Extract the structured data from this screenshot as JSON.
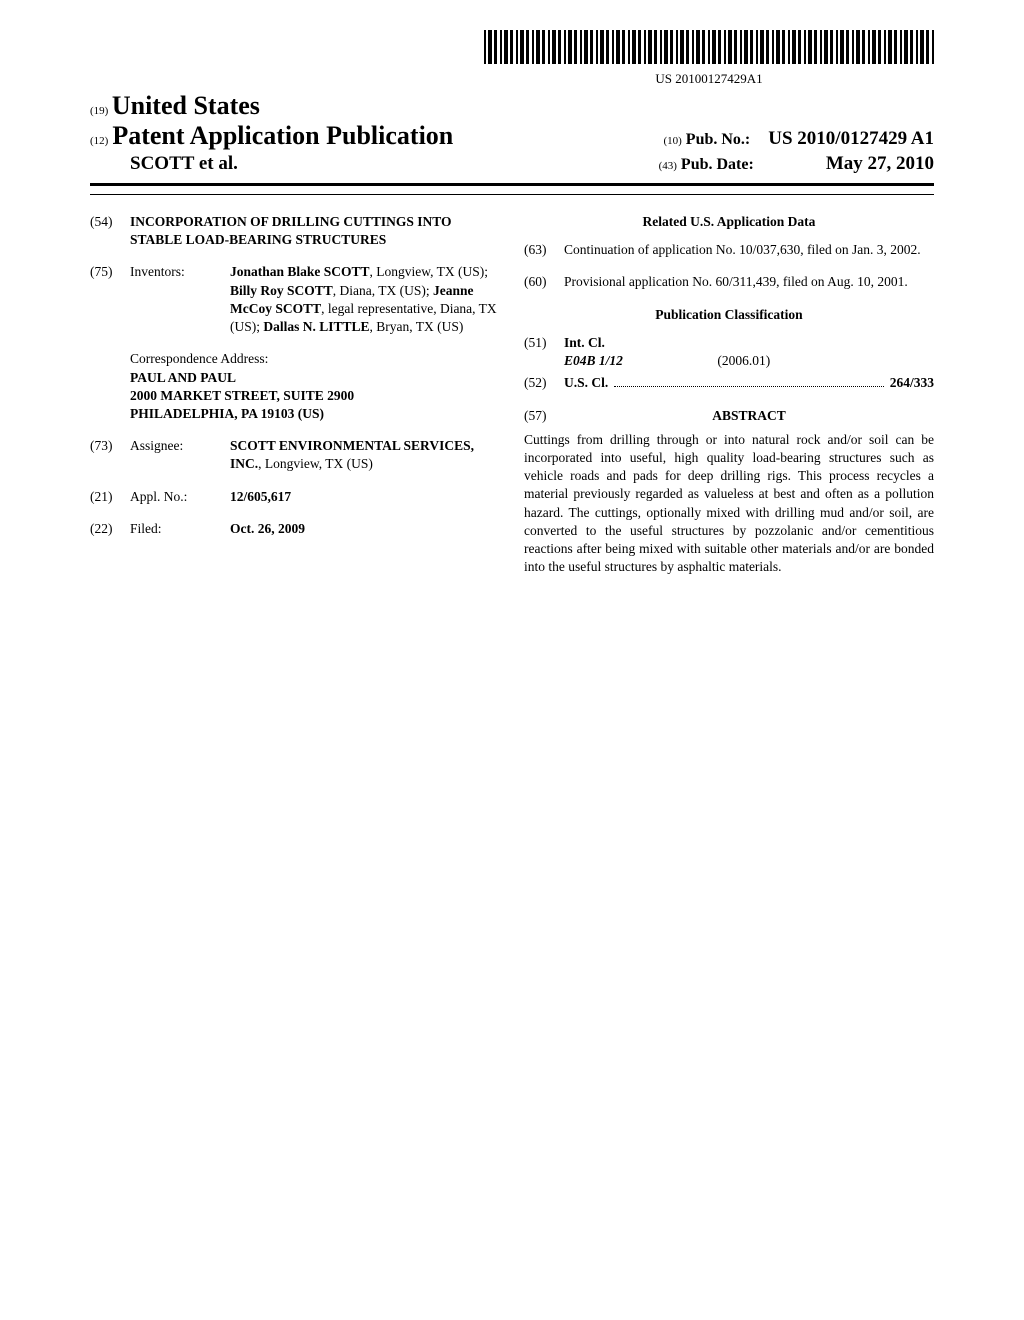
{
  "barcode_label": "US 20100127429A1",
  "header": {
    "country_code": "(19)",
    "country": "United States",
    "pub_type_code": "(12)",
    "pub_type": "Patent Application Publication",
    "pub_no_code": "(10)",
    "pub_no_label": "Pub. No.:",
    "pub_no_value": "US 2010/0127429 A1",
    "inventor_surname": "SCOTT et al.",
    "pub_date_code": "(43)",
    "pub_date_label": "Pub. Date:",
    "pub_date_value": "May 27, 2010"
  },
  "left": {
    "title_code": "(54)",
    "title": "INCORPORATION OF DRILLING CUTTINGS INTO STABLE LOAD-BEARING STRUCTURES",
    "inventors_code": "(75)",
    "inventors_label": "Inventors:",
    "inventors_html": "<b>Jonathan Blake SCOTT</b>, Longview, TX (US); <b>Billy Roy SCOTT</b>, Diana, TX (US); <b>Jeanne McCoy SCOTT</b>, legal representative, Diana, TX (US); <b>Dallas N. LITTLE</b>, Bryan, TX (US)",
    "corr_label": "Correspondence Address:",
    "corr_line1": "PAUL AND PAUL",
    "corr_line2": "2000 MARKET STREET, SUITE 2900",
    "corr_line3": "PHILADELPHIA, PA 19103 (US)",
    "assignee_code": "(73)",
    "assignee_label": "Assignee:",
    "assignee_html": "<b>SCOTT ENVIRONMENTAL SERVICES, INC.</b>, Longview, TX (US)",
    "appl_no_code": "(21)",
    "appl_no_label": "Appl. No.:",
    "appl_no_value": "12/605,617",
    "filed_code": "(22)",
    "filed_label": "Filed:",
    "filed_value": "Oct. 26, 2009"
  },
  "right": {
    "related_heading": "Related U.S. Application Data",
    "cont_code": "(63)",
    "cont_text": "Continuation of application No. 10/037,630, filed on Jan. 3, 2002.",
    "prov_code": "(60)",
    "prov_text": "Provisional application No. 60/311,439, filed on Aug. 10, 2001.",
    "class_heading": "Publication Classification",
    "intcl_code": "(51)",
    "intcl_label": "Int. Cl.",
    "intcl_symbol": "E04B  1/12",
    "intcl_date": "(2006.01)",
    "uscl_code": "(52)",
    "uscl_label": "U.S. Cl.",
    "uscl_value": "264/333",
    "abstract_code": "(57)",
    "abstract_label": "ABSTRACT",
    "abstract_text": "Cuttings from drilling through or into natural rock and/or soil can be incorporated into useful, high quality load-bearing structures such as vehicle roads and pads for deep drilling rigs. This process recycles a material previously regarded as valueless at best and often as a pollution hazard. The cuttings, optionally mixed with drilling mud and/or soil, are converted to the useful structures by pozzolanic and/or cementitious reactions after being mixed with suitable other materials and/or are bonded into the useful structures by asphaltic materials."
  }
}
